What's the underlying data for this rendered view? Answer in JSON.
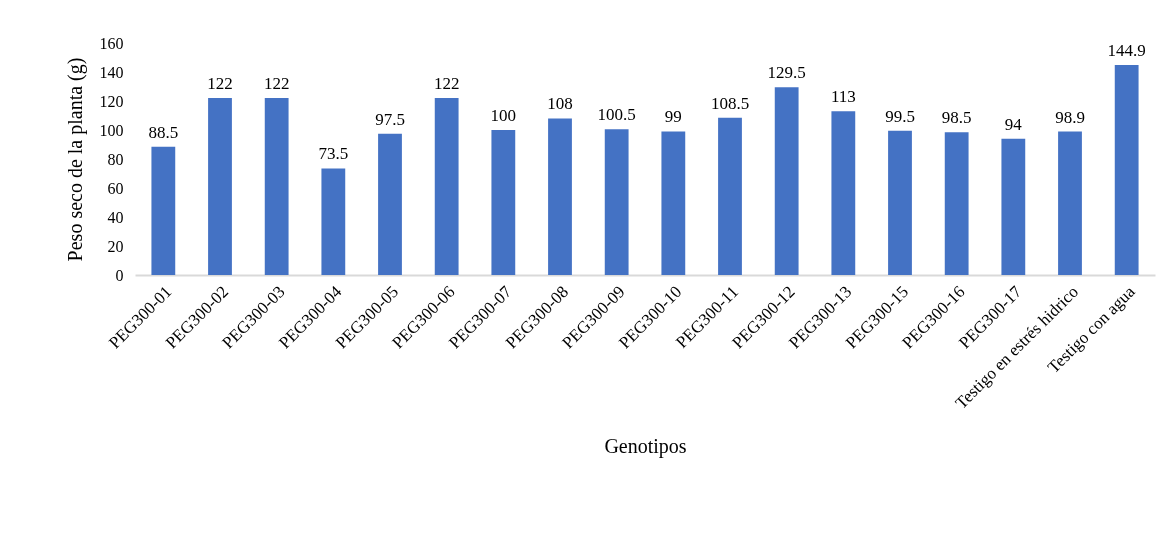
{
  "chart_data": {
    "type": "bar",
    "xlabel": "Genotipos",
    "ylabel": "Peso seco de la planta (g)",
    "categories": [
      "PEG300-01",
      "PEG300-02",
      "PEG300-03",
      "PEG300-04",
      "PEG300-05",
      "PEG300-06",
      "PEG300-07",
      "PEG300-08",
      "PEG300-09",
      "PEG300-10",
      "PEG300-11",
      "PEG300-12",
      "PEG300-13",
      "PEG300-15",
      "PEG300-16",
      "PEG300-17",
      "Testigo en estrés hidrico",
      "Testigo con agua"
    ],
    "values": [
      88.5,
      122,
      122,
      73.5,
      97.5,
      122,
      100,
      108,
      100.5,
      99,
      108.5,
      129.5,
      113,
      99.5,
      98.5,
      94,
      98.9,
      144.9
    ],
    "color": "#4472c4",
    "ylim": [
      0,
      160
    ],
    "yticks": [
      0,
      20,
      40,
      60,
      80,
      100,
      120,
      140,
      160
    ],
    "data_labels": true,
    "grid": false
  }
}
